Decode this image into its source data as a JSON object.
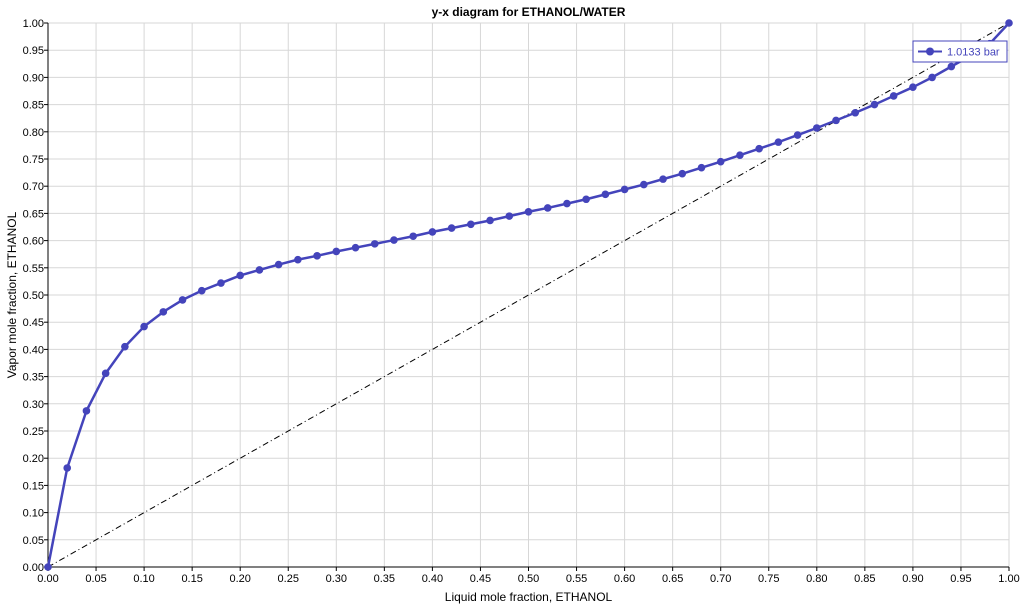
{
  "chart_data": {
    "type": "line",
    "title": "y-x diagram for ETHANOL/WATER",
    "xlabel": "Liquid mole fraction, ETHANOL",
    "ylabel": "Vapor mole fraction, ETHANOL",
    "xlim": [
      0,
      1
    ],
    "ylim": [
      0,
      1
    ],
    "grid": true,
    "legend_position": "top-right",
    "xticks": [
      "0.00",
      "0.05",
      "0.10",
      "0.15",
      "0.20",
      "0.25",
      "0.30",
      "0.35",
      "0.40",
      "0.45",
      "0.50",
      "0.55",
      "0.60",
      "0.65",
      "0.70",
      "0.75",
      "0.80",
      "0.85",
      "0.90",
      "0.95",
      "1.00"
    ],
    "yticks": [
      "0.00",
      "0.05",
      "0.10",
      "0.15",
      "0.20",
      "0.25",
      "0.30",
      "0.35",
      "0.40",
      "0.45",
      "0.50",
      "0.55",
      "0.60",
      "0.65",
      "0.70",
      "0.75",
      "0.80",
      "0.85",
      "0.90",
      "0.95",
      "1.00"
    ],
    "reference_line": {
      "x": [
        0,
        1
      ],
      "y": [
        0,
        1
      ],
      "style": "dash-dot",
      "color": "#000000"
    },
    "series": [
      {
        "name": "1.0133 bar",
        "color": "#4444bb",
        "marker": "circle",
        "x": [
          0.0,
          0.02,
          0.04,
          0.06,
          0.08,
          0.1,
          0.12,
          0.14,
          0.16,
          0.18,
          0.2,
          0.22,
          0.24,
          0.26,
          0.28,
          0.3,
          0.32,
          0.34,
          0.36,
          0.38,
          0.4,
          0.42,
          0.44,
          0.46,
          0.48,
          0.5,
          0.52,
          0.54,
          0.56,
          0.58,
          0.6,
          0.62,
          0.64,
          0.66,
          0.68,
          0.7,
          0.72,
          0.74,
          0.76,
          0.78,
          0.8,
          0.82,
          0.84,
          0.86,
          0.88,
          0.9,
          0.92,
          0.94,
          0.96,
          0.98,
          1.0
        ],
        "y": [
          0.0,
          0.182,
          0.287,
          0.356,
          0.405,
          0.442,
          0.469,
          0.491,
          0.508,
          0.522,
          0.536,
          0.546,
          0.556,
          0.565,
          0.572,
          0.58,
          0.587,
          0.594,
          0.601,
          0.608,
          0.616,
          0.623,
          0.63,
          0.637,
          0.645,
          0.653,
          0.66,
          0.668,
          0.676,
          0.685,
          0.694,
          0.703,
          0.713,
          0.723,
          0.734,
          0.745,
          0.757,
          0.769,
          0.781,
          0.794,
          0.807,
          0.821,
          0.835,
          0.85,
          0.866,
          0.882,
          0.9,
          0.92,
          0.94,
          0.962,
          1.0
        ]
      }
    ]
  }
}
